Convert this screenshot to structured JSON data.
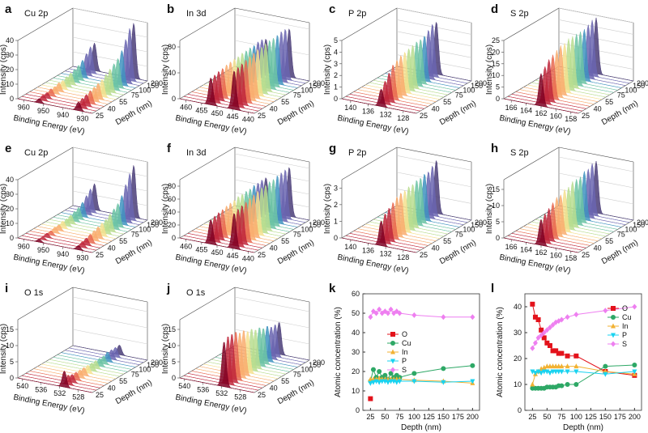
{
  "chart_data": [
    {
      "type": "waterfall",
      "panel": "a",
      "title": "Cu 2p",
      "zlabel": "Intensity (cps)",
      "xlabel": "Binding Energy (eV)",
      "ylabel": "Depth (nm)",
      "xlim": [
        963,
        925
      ],
      "xticks": [
        960,
        950,
        940,
        930
      ],
      "zlim": [
        0,
        40
      ],
      "zticks": [
        0,
        10,
        20,
        30,
        40
      ],
      "depths": [
        25,
        null,
        null,
        40,
        null,
        null,
        55,
        null,
        null,
        75,
        null,
        100,
        null,
        150,
        200
      ],
      "series": [
        {
          "center": 932,
          "values": [
            6,
            7,
            8,
            9,
            10,
            11,
            12,
            14,
            16,
            18,
            20,
            24,
            30,
            36,
            38
          ]
        },
        {
          "center": 952,
          "values": [
            3,
            4,
            4,
            5,
            5,
            6,
            6,
            7,
            8,
            9,
            10,
            12,
            15,
            18,
            19
          ]
        }
      ],
      "palette": [
        "#7f0022",
        "#c0273b",
        "#e8674f",
        "#f9ad6f",
        "#f5e08f",
        "#b9dd8f",
        "#6cc3a4",
        "#3f93c0",
        "#6a65b0",
        "#4a3d78"
      ]
    },
    {
      "type": "waterfall",
      "panel": "b",
      "title": "In 3d",
      "zlabel": "Intensity (cps)",
      "xlabel": "Binding Energy (eV)",
      "ylabel": "Depth (nm)",
      "xlim": [
        462,
        438
      ],
      "xticks": [
        460,
        455,
        450,
        445,
        440
      ],
      "zlim": [
        0,
        90
      ],
      "zticks": [
        0,
        40,
        80
      ],
      "depths": [
        25,
        null,
        null,
        40,
        null,
        null,
        55,
        null,
        null,
        75,
        null,
        100,
        null,
        150,
        200
      ],
      "series": [
        {
          "center": 444.5,
          "values": [
            60,
            62,
            64,
            66,
            68,
            70,
            72,
            72,
            74,
            75,
            75,
            76,
            78,
            78,
            75
          ]
        },
        {
          "center": 452,
          "values": [
            42,
            43,
            45,
            46,
            48,
            49,
            50,
            50,
            52,
            52,
            53,
            53,
            55,
            55,
            52
          ]
        }
      ],
      "palette": [
        "#7f0022",
        "#c0273b",
        "#e8674f",
        "#f9ad6f",
        "#f5e08f",
        "#b9dd8f",
        "#6cc3a4",
        "#3f93c0",
        "#6a65b0",
        "#4a3d78"
      ]
    },
    {
      "type": "waterfall",
      "panel": "c",
      "title": "P 2p",
      "zlabel": "Intensity (cps)",
      "xlabel": "Binding Energy (eV)",
      "ylabel": "Depth (nm)",
      "xlim": [
        142,
        125
      ],
      "xticks": [
        140,
        136,
        132,
        128
      ],
      "zlim": [
        0,
        5
      ],
      "zticks": [
        0,
        1,
        2,
        3,
        4,
        5
      ],
      "depths": [
        25,
        null,
        null,
        40,
        null,
        null,
        55,
        null,
        null,
        75,
        null,
        100,
        null,
        150,
        200
      ],
      "series": [
        {
          "center": 133,
          "values": [
            1.5,
            2,
            2.5,
            3,
            3.2,
            3.4,
            3.5,
            3.6,
            3.7,
            3.8,
            3.8,
            3.9,
            4.2,
            4.5,
            4.5
          ]
        }
      ],
      "palette": [
        "#7f0022",
        "#c0273b",
        "#e8674f",
        "#f9ad6f",
        "#f5e08f",
        "#b9dd8f",
        "#6cc3a4",
        "#3f93c0",
        "#6a65b0",
        "#4a3d78"
      ]
    },
    {
      "type": "waterfall",
      "panel": "d",
      "title": "S 2p",
      "zlabel": "Intensity (cps)",
      "xlabel": "Binding Energy (eV)",
      "ylabel": "Depth (nm)",
      "xlim": [
        167,
        157
      ],
      "xticks": [
        166,
        164,
        162,
        160,
        158
      ],
      "zlim": [
        0,
        25
      ],
      "zticks": [
        0,
        5,
        10,
        15,
        20,
        25
      ],
      "depths": [
        25,
        null,
        null,
        40,
        null,
        null,
        55,
        null,
        null,
        75,
        null,
        100,
        null,
        150,
        200
      ],
      "series": [
        {
          "center": 162,
          "values": [
            14,
            16,
            18,
            19,
            20,
            21,
            21,
            22,
            22,
            22,
            22,
            22,
            23,
            24,
            24
          ]
        }
      ],
      "palette": [
        "#7f0022",
        "#c0273b",
        "#e8674f",
        "#f9ad6f",
        "#f5e08f",
        "#b9dd8f",
        "#6cc3a4",
        "#3f93c0",
        "#6a65b0",
        "#4a3d78"
      ]
    },
    {
      "type": "waterfall",
      "panel": "e",
      "title": "Cu 2p",
      "zlabel": "Intensity (cps)",
      "xlabel": "Binding Energy (eV)",
      "ylabel": "Depth (nm)",
      "xlim": [
        963,
        925
      ],
      "xticks": [
        960,
        950,
        940,
        930
      ],
      "zlim": [
        0,
        40
      ],
      "zticks": [
        0,
        10,
        20,
        30,
        40
      ],
      "depths": [
        25,
        null,
        null,
        40,
        null,
        null,
        55,
        null,
        null,
        75,
        null,
        100,
        null,
        150,
        200
      ],
      "series": [
        {
          "center": 932,
          "values": [
            3,
            4,
            5,
            6,
            7,
            8,
            9,
            10,
            12,
            14,
            16,
            20,
            26,
            32,
            36
          ]
        },
        {
          "center": 952,
          "values": [
            2,
            2,
            3,
            3,
            4,
            4,
            5,
            5,
            6,
            7,
            8,
            10,
            13,
            16,
            18
          ]
        }
      ],
      "palette": [
        "#7f0022",
        "#c0273b",
        "#e8674f",
        "#f9ad6f",
        "#f5e08f",
        "#b9dd8f",
        "#6cc3a4",
        "#3f93c0",
        "#6a65b0",
        "#4a3d78"
      ]
    },
    {
      "type": "waterfall",
      "panel": "f",
      "title": "In 3d",
      "zlabel": "Intensity (cps)",
      "xlabel": "Binding Energy (eV)",
      "ylabel": "Depth (nm)",
      "xlim": [
        462,
        438
      ],
      "xticks": [
        460,
        455,
        450,
        445,
        440
      ],
      "zlim": [
        0,
        90
      ],
      "zticks": [
        0,
        20,
        40,
        60,
        80
      ],
      "depths": [
        25,
        null,
        null,
        40,
        null,
        null,
        55,
        null,
        null,
        75,
        null,
        100,
        null,
        150,
        200
      ],
      "series": [
        {
          "center": 444.5,
          "values": [
            55,
            58,
            60,
            62,
            64,
            66,
            68,
            70,
            70,
            72,
            72,
            74,
            75,
            76,
            76
          ]
        },
        {
          "center": 452,
          "values": [
            38,
            40,
            42,
            43,
            45,
            46,
            47,
            49,
            49,
            50,
            50,
            52,
            52,
            53,
            53
          ]
        }
      ],
      "palette": [
        "#7f0022",
        "#c0273b",
        "#e8674f",
        "#f9ad6f",
        "#f5e08f",
        "#b9dd8f",
        "#6cc3a4",
        "#3f93c0",
        "#6a65b0",
        "#4a3d78"
      ]
    },
    {
      "type": "waterfall",
      "panel": "g",
      "title": "P 2p",
      "zlabel": "Intensity (cps)",
      "xlabel": "Binding Energy (eV)",
      "ylabel": "Depth (nm)",
      "xlim": [
        142,
        125
      ],
      "xticks": [
        140,
        136,
        132,
        128
      ],
      "zlim": [
        0,
        3.5
      ],
      "zticks": [
        0,
        1,
        2,
        3
      ],
      "depths": [
        25,
        null,
        null,
        40,
        null,
        null,
        55,
        null,
        null,
        75,
        null,
        100,
        null,
        150,
        200
      ],
      "series": [
        {
          "center": 133,
          "values": [
            1.5,
            1.8,
            2,
            2.2,
            2.4,
            2.5,
            2.5,
            2.6,
            2.6,
            2.7,
            2.7,
            2.8,
            2.8,
            3,
            3.2
          ]
        }
      ],
      "palette": [
        "#7f0022",
        "#c0273b",
        "#e8674f",
        "#f9ad6f",
        "#f5e08f",
        "#b9dd8f",
        "#6cc3a4",
        "#3f93c0",
        "#6a65b0",
        "#4a3d78"
      ]
    },
    {
      "type": "waterfall",
      "panel": "h",
      "title": "S 2p",
      "zlabel": "Intensity (cps)",
      "xlabel": "Binding Energy (eV)",
      "ylabel": "Depth (nm)",
      "xlim": [
        167,
        157
      ],
      "xticks": [
        166,
        164,
        162,
        160,
        158
      ],
      "zlim": [
        0,
        18
      ],
      "zticks": [
        0,
        5,
        10,
        15
      ],
      "depths": [
        25,
        null,
        null,
        40,
        null,
        null,
        55,
        null,
        null,
        75,
        null,
        100,
        null,
        150,
        200
      ],
      "series": [
        {
          "center": 162,
          "values": [
            8,
            9,
            10,
            11,
            12,
            12,
            13,
            13,
            14,
            14,
            14,
            15,
            15,
            16,
            16
          ]
        }
      ],
      "palette": [
        "#7f0022",
        "#c0273b",
        "#e8674f",
        "#f9ad6f",
        "#f5e08f",
        "#b9dd8f",
        "#6cc3a4",
        "#3f93c0",
        "#6a65b0",
        "#4a3d78"
      ]
    },
    {
      "type": "waterfall",
      "panel": "i",
      "title": "O 1s",
      "zlabel": "Intensity (cps)",
      "xlabel": "Binding Energy (eV)",
      "ylabel": "Depth (nm)",
      "xlim": [
        541,
        525
      ],
      "xticks": [
        540,
        536,
        532,
        528
      ],
      "zlim": [
        0,
        18
      ],
      "zticks": [
        0,
        5,
        10,
        15
      ],
      "depths": [
        25,
        null,
        null,
        40,
        null,
        null,
        55,
        null,
        null,
        75,
        null,
        100,
        null,
        150,
        200
      ],
      "series": [
        {
          "center": 531,
          "values": [
            5,
            3,
            2.5,
            2.5,
            2.5,
            2.5,
            2.5,
            2.5,
            2.5,
            2.5,
            2.5,
            3,
            3,
            3,
            3
          ]
        }
      ],
      "palette": [
        "#7f0022",
        "#c0273b",
        "#e8674f",
        "#f9ad6f",
        "#f5e08f",
        "#b9dd8f",
        "#6cc3a4",
        "#3f93c0",
        "#6a65b0",
        "#4a3d78"
      ]
    },
    {
      "type": "waterfall",
      "panel": "j",
      "title": "O 1s",
      "zlabel": "Intensity (cps)",
      "xlabel": "Binding Energy (eV)",
      "ylabel": "Depth (nm)",
      "xlim": [
        541,
        525
      ],
      "xticks": [
        540,
        536,
        532,
        528
      ],
      "zlim": [
        0,
        18
      ],
      "zticks": [
        0,
        5,
        10,
        15
      ],
      "depths": [
        25,
        null,
        null,
        40,
        null,
        null,
        55,
        null,
        null,
        75,
        null,
        100,
        null,
        150,
        200
      ],
      "series": [
        {
          "center": 531.5,
          "values": [
            14,
            15,
            15,
            15,
            14,
            14,
            13,
            13,
            12,
            12,
            11,
            11,
            10,
            10,
            10
          ]
        }
      ],
      "palette": [
        "#7f0022",
        "#c0273b",
        "#e8674f",
        "#f9ad6f",
        "#f5e08f",
        "#b9dd8f",
        "#6cc3a4",
        "#3f93c0",
        "#6a65b0",
        "#4a3d78"
      ]
    },
    {
      "type": "line",
      "panel": "k",
      "xlabel": "Depth (nm)",
      "ylabel": "Atomic concentration (%)",
      "xlim": [
        12,
        212
      ],
      "xticks": [
        25,
        50,
        75,
        100,
        125,
        150,
        175,
        200
      ],
      "ylim": [
        0,
        60
      ],
      "yticks": [
        0,
        10,
        20,
        30,
        40,
        50,
        60
      ],
      "legend": "center left",
      "x": [
        25,
        30,
        35,
        40,
        45,
        50,
        55,
        60,
        65,
        70,
        75,
        100,
        150,
        200
      ],
      "series": [
        {
          "name": "O",
          "color": "#e3121b",
          "marker": "square",
          "values": [
            6,
            null,
            null,
            null,
            null,
            null,
            null,
            null,
            null,
            null,
            null,
            null,
            null,
            null
          ]
        },
        {
          "name": "Cu",
          "color": "#2ea866",
          "marker": "circle",
          "values": [
            15,
            21,
            17,
            20,
            17,
            18,
            16,
            19,
            17,
            18,
            17,
            19,
            21.5,
            23
          ]
        },
        {
          "name": "In",
          "color": "#f2b233",
          "marker": "triangle-up",
          "values": [
            16,
            16,
            16,
            16.5,
            16,
            16,
            16,
            16,
            16,
            16,
            16,
            15.5,
            15,
            14
          ]
        },
        {
          "name": "P",
          "color": "#19d3f0",
          "marker": "triangle-down",
          "values": [
            14,
            14.5,
            15,
            14.5,
            15,
            15,
            14.5,
            15,
            15,
            14.5,
            15,
            15,
            14.5,
            15
          ]
        },
        {
          "name": "S",
          "color": "#ee7ff0",
          "marker": "diamond",
          "values": [
            48,
            51,
            50,
            52,
            50,
            51,
            50,
            52,
            50,
            51,
            50,
            49,
            48,
            48
          ]
        }
      ]
    },
    {
      "type": "line",
      "panel": "l",
      "xlabel": "Depth (nm)",
      "ylabel": "Atomic concentration (%)",
      "xlim": [
        12,
        212
      ],
      "xticks": [
        25,
        50,
        75,
        100,
        125,
        150,
        175,
        200
      ],
      "ylim": [
        0,
        45
      ],
      "yticks": [
        0,
        10,
        20,
        30,
        40
      ],
      "legend": "upper right",
      "x": [
        25,
        30,
        35,
        40,
        45,
        50,
        55,
        60,
        65,
        70,
        75,
        85,
        100,
        150,
        200
      ],
      "series": [
        {
          "name": "O",
          "color": "#e3121b",
          "marker": "square",
          "values": [
            41,
            36,
            35,
            31,
            28,
            26,
            25,
            23,
            23,
            22,
            22,
            21,
            21,
            15,
            13.5
          ]
        },
        {
          "name": "Cu",
          "color": "#2ea866",
          "marker": "circle",
          "values": [
            8.5,
            8.5,
            8.5,
            8.5,
            8.5,
            9,
            9,
            9,
            9,
            9.5,
            9.5,
            10,
            10,
            17,
            17.5
          ]
        },
        {
          "name": "In",
          "color": "#f2b233",
          "marker": "triangle-up",
          "values": [
            10,
            14,
            15,
            16,
            16.5,
            17,
            17,
            17,
            17,
            17,
            17,
            17,
            17,
            15,
            14
          ]
        },
        {
          "name": "P",
          "color": "#19d3f0",
          "marker": "triangle-down",
          "values": [
            15,
            14.5,
            15,
            14.5,
            15,
            15,
            14.5,
            15,
            15,
            15,
            15,
            15,
            15,
            14,
            15
          ]
        },
        {
          "name": "S",
          "color": "#ee7ff0",
          "marker": "diamond",
          "values": [
            24,
            26,
            28,
            29,
            30,
            31,
            32,
            33,
            34,
            34.5,
            35,
            36,
            37,
            38.5,
            40
          ]
        }
      ]
    }
  ]
}
